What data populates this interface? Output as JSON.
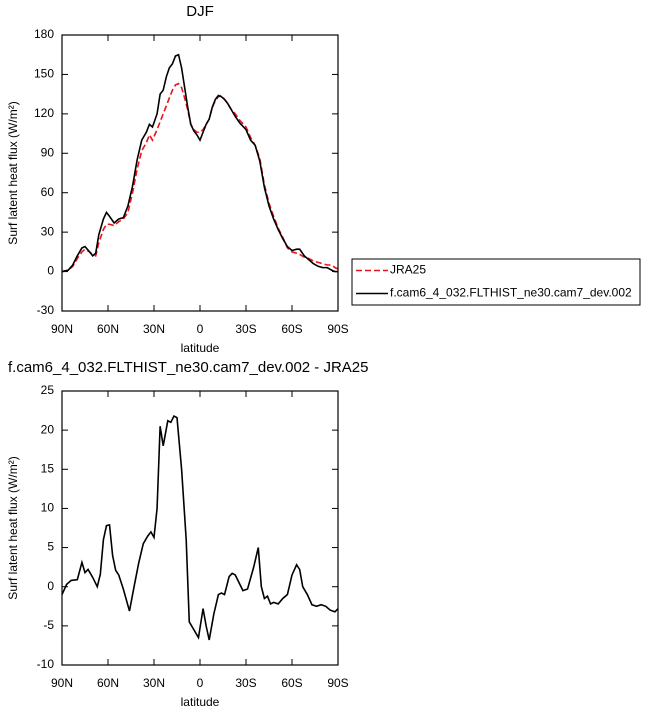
{
  "chart_data": [
    {
      "type": "line",
      "title": "DJF",
      "xlabel": "latitude",
      "ylabel": "Surf latent heat flux (W/m²)",
      "xlim": [
        90,
        -90
      ],
      "xticks": [
        {
          "value": 90,
          "label": "90N"
        },
        {
          "value": 60,
          "label": "60N"
        },
        {
          "value": 30,
          "label": "30N"
        },
        0,
        {
          "value": -30,
          "label": "30S"
        },
        {
          "value": -60,
          "label": "60S"
        },
        {
          "value": -90,
          "label": "90S"
        }
      ],
      "ylim": [
        -30,
        180
      ],
      "yticks": [
        -30,
        0,
        30,
        60,
        90,
        120,
        150,
        180
      ],
      "x": [
        90,
        86,
        83,
        80,
        77,
        75,
        72,
        70,
        68,
        66,
        63,
        61,
        59,
        56,
        53,
        50,
        47,
        44,
        41,
        38,
        35,
        33,
        31,
        28,
        26,
        24,
        22,
        20,
        18,
        16,
        14,
        12,
        10,
        8,
        6,
        4,
        2,
        0,
        -2,
        -4,
        -6,
        -8,
        -10,
        -12,
        -14,
        -16,
        -18,
        -20,
        -23,
        -26,
        -30,
        -33,
        -36,
        -39,
        -42,
        -45,
        -48,
        -51,
        -54,
        -57,
        -60,
        -63,
        -65,
        -68,
        -71,
        -74,
        -77,
        -80,
        -83,
        -86,
        -88,
        -90
      ],
      "series": [
        {
          "name": "JRA25",
          "color": "#e8131b",
          "dash": true,
          "values": [
            0,
            1,
            4,
            10,
            15,
            17,
            15,
            13,
            12,
            22,
            32,
            36,
            36,
            35,
            38,
            40,
            45,
            60,
            78,
            92,
            98,
            104,
            100,
            108,
            114,
            120,
            126,
            132,
            138,
            142,
            143,
            140,
            132,
            123,
            112,
            108,
            106,
            106,
            108,
            112,
            116,
            125,
            130,
            133,
            134,
            131,
            128,
            124,
            120,
            115,
            110,
            102,
            96,
            86,
            66,
            52,
            42,
            33,
            26,
            18,
            15,
            14,
            13,
            11,
            10,
            8,
            7,
            6,
            5,
            5,
            3,
            2
          ]
        },
        {
          "name": "f.cam6_4_032.FLTHIST_ne30.cam7_dev.002",
          "color": "#000000",
          "dash": false,
          "values": [
            0,
            1,
            5,
            12,
            18,
            19,
            15,
            12,
            14,
            28,
            40,
            45,
            42,
            37,
            40,
            41,
            50,
            65,
            85,
            100,
            106,
            112,
            110,
            120,
            135,
            138,
            148,
            155,
            158,
            164,
            165,
            155,
            140,
            125,
            112,
            107,
            104,
            100,
            106,
            112,
            116,
            125,
            131,
            134,
            133,
            131,
            128,
            124,
            118,
            113,
            108,
            100,
            96,
            84,
            64,
            50,
            40,
            32,
            25,
            19,
            16,
            17,
            17,
            12,
            9,
            6,
            4,
            3,
            3,
            1,
            0,
            0
          ]
        }
      ]
    },
    {
      "type": "line",
      "title": "f.cam6_4_032.FLTHIST_ne30.cam7_dev.002 - JRA25",
      "xlabel": "latitude",
      "ylabel": "Surf latent heat flux (W/m²)",
      "xlim": [
        90,
        -90
      ],
      "xticks": [
        {
          "value": 90,
          "label": "90N"
        },
        {
          "value": 60,
          "label": "60N"
        },
        {
          "value": 30,
          "label": "30N"
        },
        0,
        {
          "value": -30,
          "label": "30S"
        },
        {
          "value": -60,
          "label": "60S"
        },
        {
          "value": -90,
          "label": "90S"
        }
      ],
      "ylim": [
        -10,
        25
      ],
      "yticks": [
        -10,
        -5,
        0,
        5,
        10,
        15,
        20,
        25
      ],
      "x": [
        90,
        87,
        84,
        80,
        77,
        75,
        73,
        70,
        67,
        65,
        63,
        61,
        59,
        57,
        55,
        53,
        50,
        46,
        43,
        40,
        37,
        34,
        32,
        30,
        28,
        26,
        24,
        21,
        19,
        17,
        15,
        12,
        9,
        7,
        4,
        1,
        -2,
        -4,
        -6,
        -9,
        -12,
        -14,
        -16,
        -19,
        -21,
        -23,
        -26,
        -28,
        -31,
        -35,
        -38,
        -40,
        -42,
        -44,
        -46,
        -48,
        -51,
        -54,
        -57,
        -60,
        -63,
        -65,
        -67,
        -70,
        -73,
        -76,
        -79,
        -82,
        -85,
        -88,
        -90
      ],
      "series": [
        {
          "color": "#000000",
          "dash": false,
          "values": [
            -1,
            0.3,
            0.8,
            0.9,
            3.1,
            1.8,
            2.2,
            1.2,
            0,
            1.6,
            6,
            7.8,
            7.9,
            4,
            2.1,
            1.5,
            -0.3,
            -3.1,
            0,
            3,
            5.5,
            6.5,
            7,
            6.3,
            10,
            20.5,
            18,
            21.2,
            21,
            21.8,
            21.6,
            15,
            6,
            -4.5,
            -5.5,
            -6.5,
            -2.8,
            -5,
            -6.8,
            -3.5,
            -1,
            -0.8,
            -1,
            1.3,
            1.7,
            1.5,
            0.3,
            -0.5,
            -0.3,
            2.5,
            5,
            0,
            -1.5,
            -1.2,
            -2.2,
            -2,
            -2.2,
            -1.5,
            -1,
            1.5,
            2.8,
            2.2,
            0,
            -1,
            -2.3,
            -2.5,
            -2.3,
            -2.5,
            -3,
            -3.2,
            -2.8
          ]
        }
      ]
    }
  ]
}
